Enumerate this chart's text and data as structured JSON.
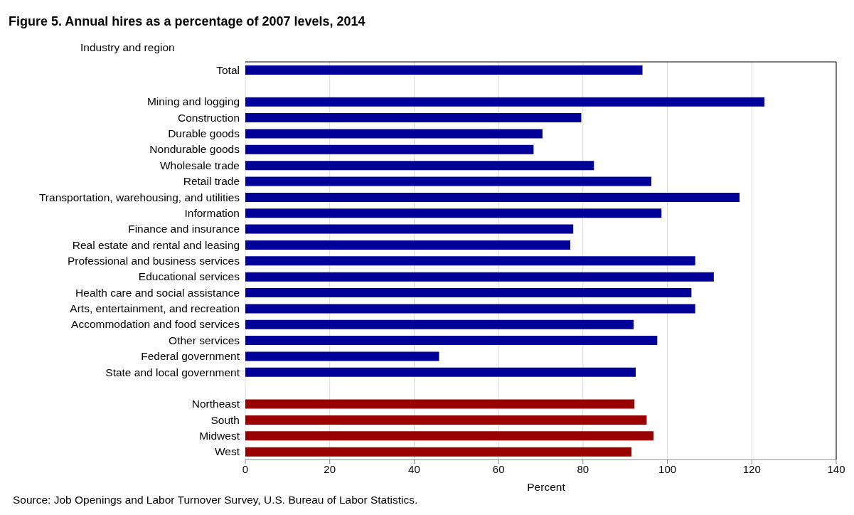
{
  "chart_data": {
    "type": "bar",
    "orientation": "horizontal",
    "title": "Figure 5. Annual hires as a percentage of 2007 levels, 2014",
    "ylabel": "Industry and region",
    "xlabel": "Percent",
    "categories": [
      "Total",
      null,
      "Mining and logging",
      "Construction",
      "Durable goods",
      "Nondurable goods",
      "Wholesale trade",
      "Retail trade",
      "Transportation, warehousing, and utilities",
      "Information",
      "Finance and insurance",
      "Real estate and rental and leasing",
      "Professional and business services",
      "Educational services",
      "Health care and social assistance",
      "Arts, entertainment, and recreation",
      "Accommodation and food services",
      "Other services",
      "Federal government",
      "State and local government",
      null,
      "Northeast",
      "South",
      "Midwest",
      "West"
    ],
    "values": [
      94.1,
      null,
      123.0,
      79.6,
      70.4,
      68.3,
      82.6,
      96.2,
      117.1,
      98.6,
      77.7,
      77.0,
      106.6,
      111.0,
      105.7,
      106.6,
      92.0,
      97.6,
      45.9,
      92.5,
      null,
      92.2,
      95.1,
      96.7,
      91.5
    ],
    "colors": [
      "#000099",
      null,
      "#000099",
      "#000099",
      "#000099",
      "#000099",
      "#000099",
      "#000099",
      "#000099",
      "#000099",
      "#000099",
      "#000099",
      "#000099",
      "#000099",
      "#000099",
      "#000099",
      "#000099",
      "#000099",
      "#000099",
      "#000099",
      null,
      "#990000",
      "#990000",
      "#990000",
      "#990000"
    ],
    "xlim": [
      0,
      140
    ],
    "xticks": [
      0,
      20,
      40,
      60,
      80,
      100,
      120,
      140
    ],
    "grid": "x",
    "annotations": [
      "Source: Job Openings and Labor Turnover Survey, U.S. Bureau of Labor Statistics."
    ]
  }
}
